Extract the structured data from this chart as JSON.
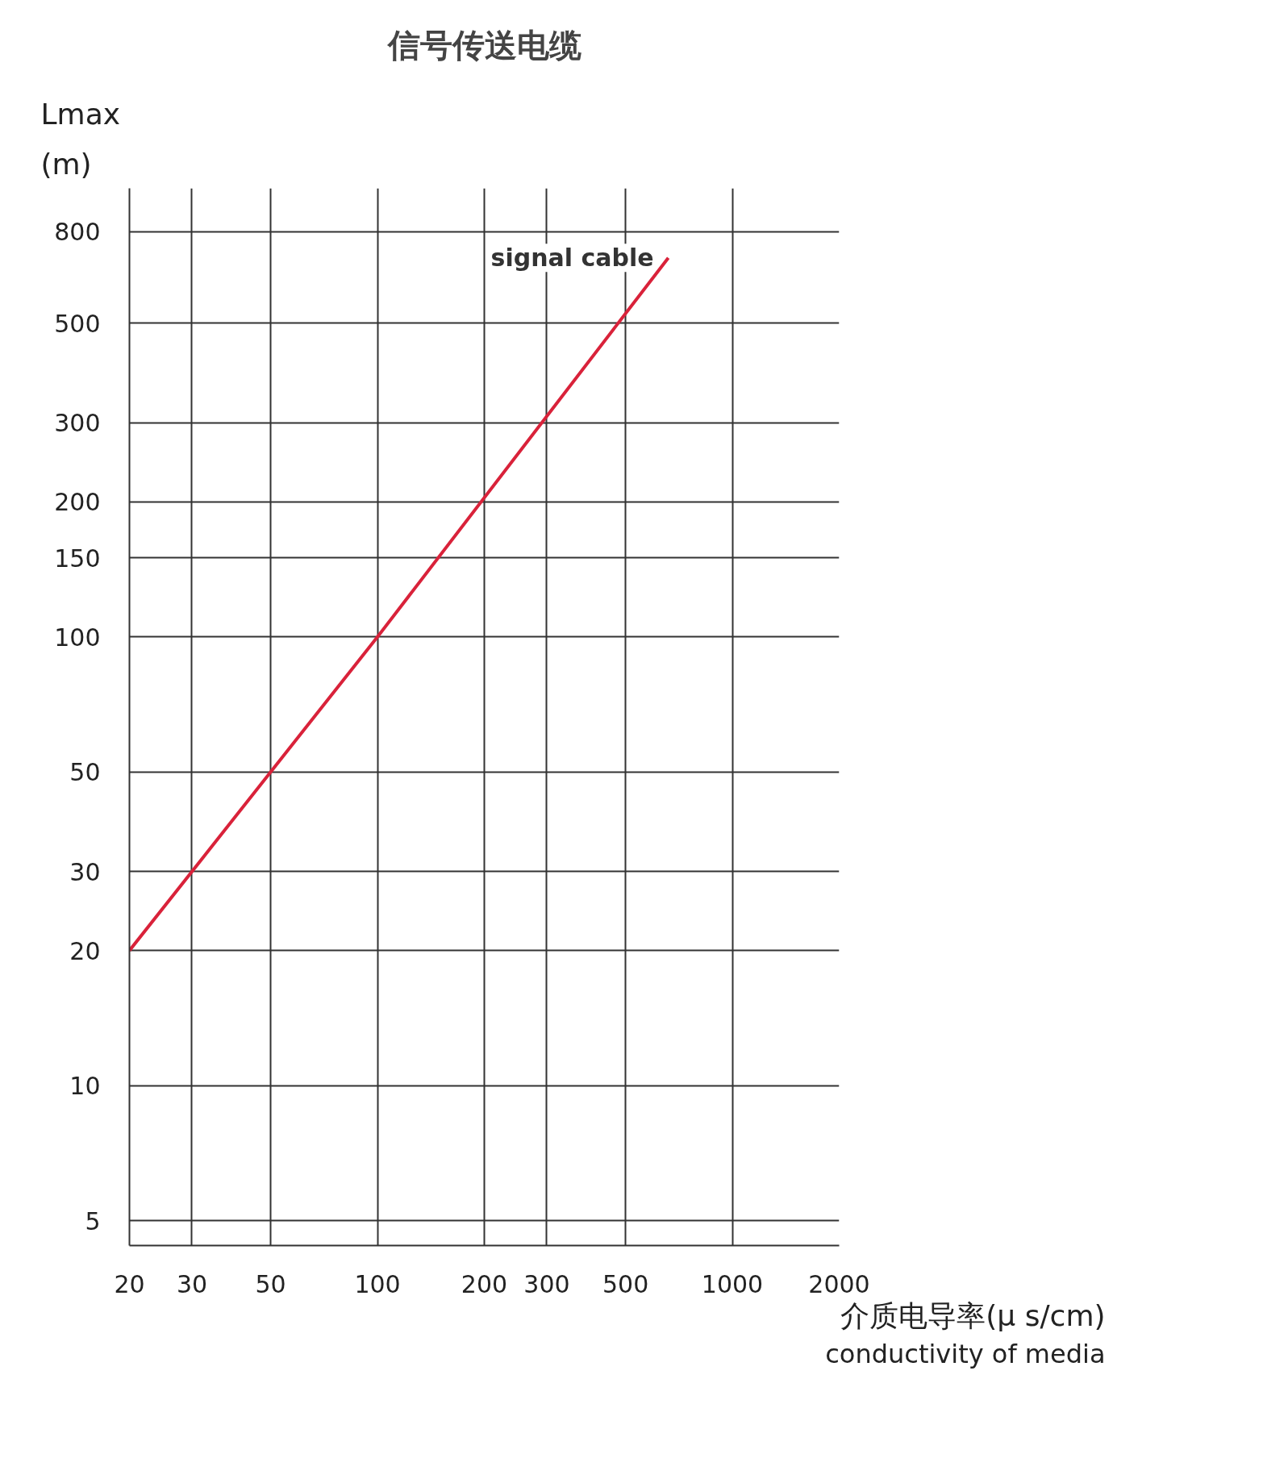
{
  "chart_data": {
    "type": "line",
    "title": "信号传送电缆",
    "xlabel": "介质电导率(μ s/cm)\nconductivity of media",
    "ylabel": "Lmax\n(m)",
    "log": "xy",
    "xlim": [
      20,
      2000
    ],
    "ylim": [
      4.4,
      1000
    ],
    "xticks": [
      20,
      30,
      50,
      100,
      200,
      300,
      500,
      1000,
      2000
    ],
    "yticks": [
      5,
      10,
      20,
      30,
      50,
      100,
      150,
      200,
      300,
      500,
      800
    ],
    "grid": true,
    "marker": "none",
    "line_style": "solid",
    "x": [
      20,
      100,
      660
    ],
    "series": [
      {
        "color": "#d9223a",
        "values": [
          20,
          100,
          700
        ]
      }
    ],
    "annotations": [
      {
        "text": "signal cable",
        "x": 660,
        "y": 700
      }
    ]
  }
}
